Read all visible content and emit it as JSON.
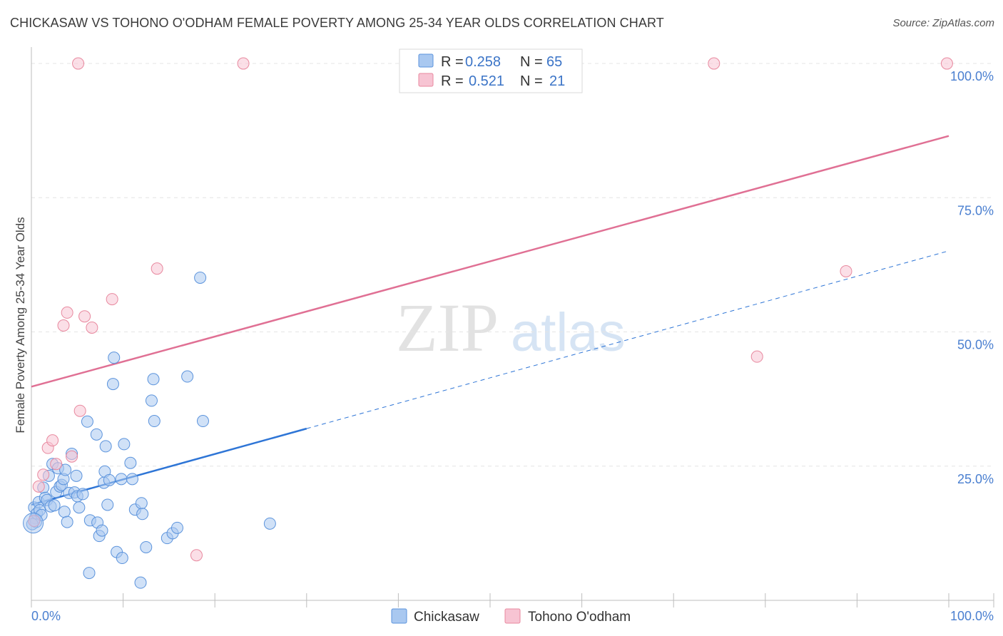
{
  "title": "CHICKASAW VS TOHONO O'ODHAM FEMALE POVERTY AMONG 25-34 YEAR OLDS CORRELATION CHART",
  "source": "Source: ZipAtlas.com",
  "watermark": {
    "zip": "ZIP",
    "atlas": "atlas"
  },
  "colors": {
    "chickasaw_fill": "#a9c8f0",
    "chickasaw_stroke": "#5b93dc",
    "chickasaw_line": "#2e75d6",
    "tohono_fill": "#f7c4d3",
    "tohono_stroke": "#e8899f",
    "tohono_line": "#e07094",
    "grid": "#e4e4e4",
    "tick_text": "#4a7fd0"
  },
  "legend": {
    "rows": [
      {
        "r_label": "R =",
        "r_value": "0.258",
        "n_label": "N =",
        "n_value": "65"
      },
      {
        "r_label": "R =",
        "r_value": "0.521",
        "n_label": "N =",
        "n_value": "21"
      }
    ]
  },
  "chart_data": {
    "type": "scatter",
    "title": "CHICKASAW VS TOHONO O'ODHAM FEMALE POVERTY AMONG 25-34 YEAR OLDS CORRELATION CHART",
    "xlabel": "",
    "ylabel": "Female Poverty Among 25-34 Year Olds",
    "xlim": [
      0,
      100
    ],
    "ylim": [
      0,
      102
    ],
    "x_tick_labels": [
      "0.0%",
      "100.0%"
    ],
    "y_ticks": [
      25,
      50,
      75,
      100
    ],
    "y_tick_labels": [
      "25.0%",
      "50.0%",
      "75.0%",
      "100.0%"
    ],
    "grid": true,
    "legend_position": "top-center",
    "series": [
      {
        "name": "Chickasaw",
        "R": 0.258,
        "N": 65,
        "points": [
          [
            0.3,
            17.3
          ],
          [
            0.4,
            15.3
          ],
          [
            0.5,
            14.6
          ],
          [
            0.6,
            16.2
          ],
          [
            0.8,
            18.3
          ],
          [
            0.9,
            16.8
          ],
          [
            1.1,
            15.9
          ],
          [
            1.3,
            21.0
          ],
          [
            1.5,
            19.1
          ],
          [
            1.7,
            18.7
          ],
          [
            1.9,
            23.2
          ],
          [
            2.1,
            17.5
          ],
          [
            2.3,
            25.4
          ],
          [
            2.5,
            17.7
          ],
          [
            2.7,
            20.2
          ],
          [
            2.9,
            24.6
          ],
          [
            3.1,
            21.2
          ],
          [
            3.3,
            21.5
          ],
          [
            3.5,
            22.6
          ],
          [
            3.6,
            16.5
          ],
          [
            3.7,
            24.3
          ],
          [
            3.9,
            14.6
          ],
          [
            4.1,
            20.0
          ],
          [
            4.4,
            27.3
          ],
          [
            4.7,
            20.1
          ],
          [
            4.9,
            23.2
          ],
          [
            5.0,
            19.4
          ],
          [
            5.2,
            17.3
          ],
          [
            5.6,
            19.8
          ],
          [
            6.1,
            33.3
          ],
          [
            6.3,
            5.1
          ],
          [
            6.4,
            14.9
          ],
          [
            7.1,
            30.9
          ],
          [
            7.2,
            14.5
          ],
          [
            7.4,
            12.0
          ],
          [
            7.7,
            13.0
          ],
          [
            7.9,
            21.9
          ],
          [
            8.0,
            24.0
          ],
          [
            8.1,
            28.7
          ],
          [
            8.3,
            17.8
          ],
          [
            8.5,
            22.4
          ],
          [
            8.9,
            40.3
          ],
          [
            9.0,
            45.2
          ],
          [
            9.3,
            9.0
          ],
          [
            9.8,
            22.6
          ],
          [
            9.9,
            7.9
          ],
          [
            10.1,
            29.1
          ],
          [
            10.8,
            25.6
          ],
          [
            11.0,
            22.6
          ],
          [
            11.3,
            16.9
          ],
          [
            11.9,
            3.3
          ],
          [
            12.0,
            18.1
          ],
          [
            12.1,
            16.1
          ],
          [
            12.5,
            9.9
          ],
          [
            13.1,
            37.2
          ],
          [
            13.3,
            41.2
          ],
          [
            13.4,
            33.4
          ],
          [
            14.8,
            11.6
          ],
          [
            15.4,
            12.5
          ],
          [
            15.9,
            13.5
          ],
          [
            17.0,
            41.7
          ],
          [
            18.4,
            60.1
          ],
          [
            18.7,
            33.4
          ],
          [
            26.0,
            14.3
          ],
          [
            0.1,
            14.2
          ]
        ]
      },
      {
        "name": "Tohono O'odham",
        "R": 0.521,
        "N": 21,
        "points": [
          [
            0.3,
            14.8
          ],
          [
            0.8,
            21.2
          ],
          [
            1.3,
            23.4
          ],
          [
            1.8,
            28.4
          ],
          [
            2.3,
            29.8
          ],
          [
            2.7,
            25.4
          ],
          [
            3.5,
            51.2
          ],
          [
            3.9,
            53.6
          ],
          [
            4.4,
            26.8
          ],
          [
            5.3,
            35.3
          ],
          [
            5.8,
            52.9
          ],
          [
            6.6,
            50.8
          ],
          [
            8.8,
            56.1
          ],
          [
            13.7,
            61.8
          ],
          [
            18.0,
            8.4
          ],
          [
            5.1,
            100
          ],
          [
            23.1,
            100
          ],
          [
            74.4,
            100
          ],
          [
            99.8,
            100
          ],
          [
            88.8,
            61.3
          ],
          [
            79.1,
            45.4
          ]
        ]
      }
    ],
    "trend_lines": [
      {
        "series": "Chickasaw",
        "x0": 0,
        "y0": 17.8,
        "x1": 100,
        "y1": 65.1,
        "solid_until_x": 30
      },
      {
        "series": "Tohono O'odham",
        "x0": 0,
        "y0": 39.8,
        "x1": 100,
        "y1": 86.5
      }
    ]
  },
  "bottom_legend": [
    {
      "label": "Chickasaw"
    },
    {
      "label": "Tohono O'odham"
    }
  ]
}
